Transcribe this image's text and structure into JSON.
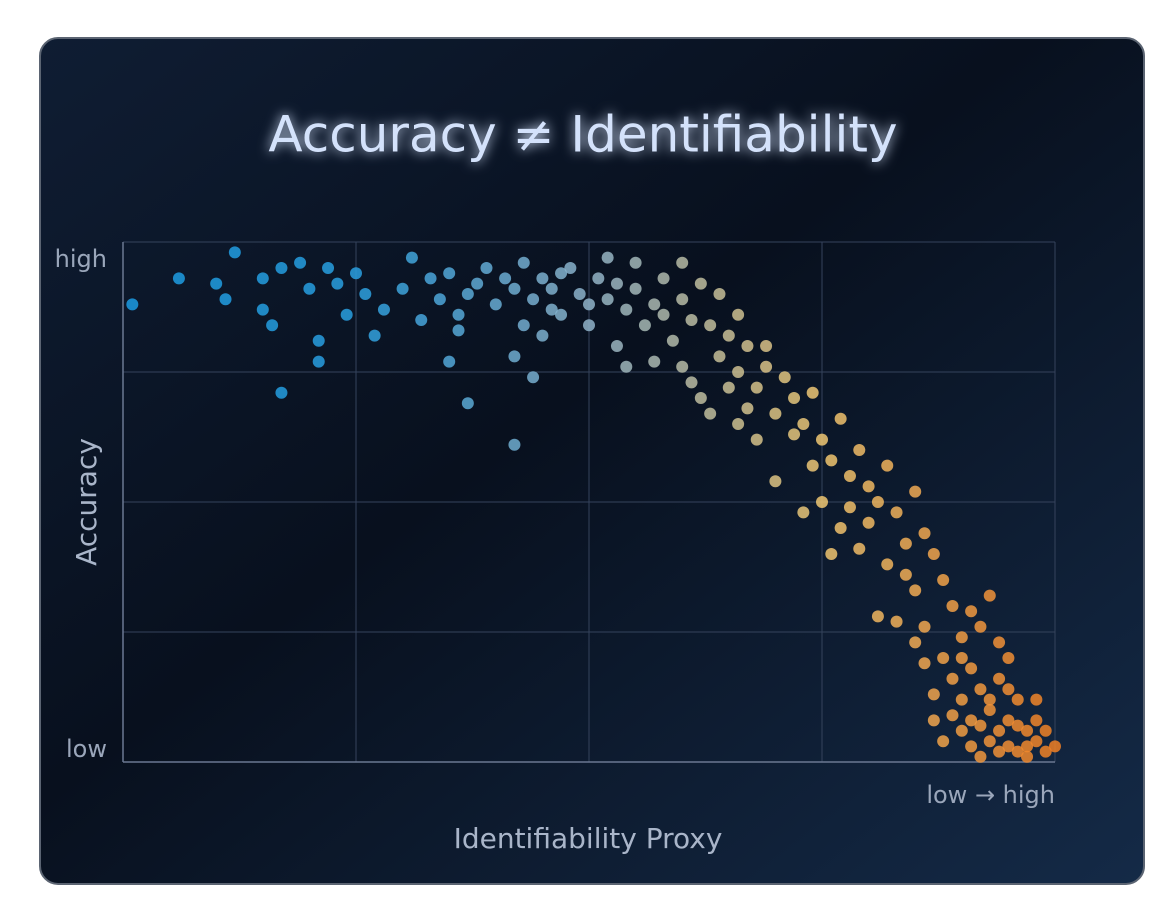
{
  "chart_data": {
    "type": "scatter",
    "title": "Accuracy ≠ Identifiability",
    "xlabel": "Identifiability Proxy",
    "ylabel": "Accuracy",
    "x_scale_label": "low → high",
    "xlim": [
      0,
      1
    ],
    "ylim": [
      0,
      1
    ],
    "yticks": [
      {
        "value": 1,
        "label": "high"
      },
      {
        "value": 0,
        "label": "low"
      }
    ],
    "xgrid": [
      0.25,
      0.5,
      0.75,
      1
    ],
    "ygrid": [
      0.25,
      0.5,
      0.75,
      1
    ],
    "grid": true,
    "colormap": [
      "#1b9be3",
      "#2a9fe0",
      "#8fb3c9",
      "#f0c772",
      "#f07f24"
    ],
    "x": [
      0.01,
      0.06,
      0.12,
      0.1,
      0.11,
      0.15,
      0.16,
      0.17,
      0.15,
      0.17,
      0.19,
      0.2,
      0.21,
      0.22,
      0.23,
      0.21,
      0.24,
      0.25,
      0.26,
      0.27,
      0.28,
      0.3,
      0.31,
      0.32,
      0.33,
      0.34,
      0.35,
      0.36,
      0.37,
      0.38,
      0.35,
      0.36,
      0.39,
      0.4,
      0.41,
      0.42,
      0.43,
      0.37,
      0.42,
      0.43,
      0.44,
      0.45,
      0.46,
      0.47,
      0.42,
      0.44,
      0.45,
      0.46,
      0.47,
      0.48,
      0.49,
      0.5,
      0.5,
      0.51,
      0.52,
      0.53,
      0.53,
      0.54,
      0.55,
      0.56,
      0.57,
      0.58,
      0.58,
      0.59,
      0.6,
      0.61,
      0.62,
      0.63,
      0.64,
      0.65,
      0.66,
      0.67,
      0.68,
      0.69,
      0.7,
      0.71,
      0.72,
      0.73,
      0.74,
      0.75,
      0.7,
      0.67,
      0.73,
      0.76,
      0.77,
      0.78,
      0.79,
      0.8,
      0.81,
      0.82,
      0.77,
      0.76,
      0.75,
      0.8,
      0.83,
      0.84,
      0.85,
      0.86,
      0.87,
      0.84,
      0.82,
      0.81,
      0.85,
      0.86,
      0.88,
      0.89,
      0.9,
      0.91,
      0.93,
      0.88,
      0.89,
      0.9,
      0.91,
      0.92,
      0.93,
      0.94,
      0.95,
      0.96,
      0.97,
      0.92,
      0.91,
      0.93,
      0.94,
      0.95,
      0.96,
      0.97,
      0.98,
      0.99,
      1.0,
      0.9,
      0.89,
      0.87,
      0.86,
      0.85,
      0.83,
      0.79,
      0.78,
      0.74,
      0.72,
      0.69,
      0.66,
      0.64,
      0.62,
      0.6,
      0.55,
      0.52,
      0.57,
      0.54,
      0.6,
      0.61,
      0.65,
      0.63,
      0.66,
      0.68,
      0.94,
      0.98,
      0.92,
      0.95,
      0.96,
      0.99,
      0.94,
      0.92,
      0.97,
      0.88,
      0.91,
      0.93,
      0.95,
      0.87,
      0.9,
      0.98
    ],
    "values": [
      0.88,
      0.93,
      0.98,
      0.92,
      0.89,
      0.87,
      0.84,
      0.71,
      0.93,
      0.95,
      0.96,
      0.91,
      0.81,
      0.95,
      0.92,
      0.77,
      0.86,
      0.94,
      0.9,
      0.82,
      0.87,
      0.91,
      0.97,
      0.85,
      0.93,
      0.89,
      0.94,
      0.86,
      0.9,
      0.92,
      0.77,
      0.83,
      0.95,
      0.88,
      0.93,
      0.91,
      0.96,
      0.69,
      0.78,
      0.84,
      0.89,
      0.93,
      0.87,
      0.94,
      0.61,
      0.74,
      0.82,
      0.91,
      0.86,
      0.95,
      0.9,
      0.88,
      0.84,
      0.93,
      0.89,
      0.8,
      0.92,
      0.87,
      0.91,
      0.84,
      0.88,
      0.86,
      0.93,
      0.81,
      0.89,
      0.85,
      0.7,
      0.84,
      0.78,
      0.82,
      0.75,
      0.8,
      0.72,
      0.76,
      0.67,
      0.74,
      0.7,
      0.65,
      0.71,
      0.62,
      0.54,
      0.68,
      0.48,
      0.58,
      0.66,
      0.55,
      0.6,
      0.53,
      0.5,
      0.57,
      0.45,
      0.4,
      0.5,
      0.46,
      0.48,
      0.42,
      0.52,
      0.44,
      0.4,
      0.36,
      0.38,
      0.28,
      0.33,
      0.26,
      0.35,
      0.3,
      0.24,
      0.29,
      0.32,
      0.2,
      0.16,
      0.12,
      0.18,
      0.14,
      0.1,
      0.16,
      0.08,
      0.12,
      0.06,
      0.07,
      0.03,
      0.04,
      0.02,
      0.03,
      0.02,
      0.03,
      0.04,
      0.02,
      0.03,
      0.06,
      0.09,
      0.13,
      0.19,
      0.23,
      0.27,
      0.41,
      0.49,
      0.57,
      0.63,
      0.8,
      0.86,
      0.9,
      0.92,
      0.96,
      0.96,
      0.97,
      0.77,
      0.76,
      0.76,
      0.73,
      0.72,
      0.67,
      0.65,
      0.62,
      0.23,
      0.12,
      0.26,
      0.2,
      0.07,
      0.06,
      0.06,
      0.01,
      0.01,
      0.04,
      0.08,
      0.12,
      0.14,
      0.08,
      0.2,
      0.08
    ]
  }
}
